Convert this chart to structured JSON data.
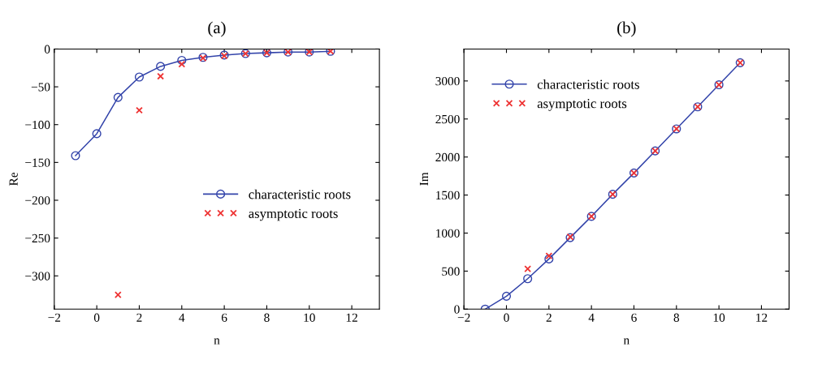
{
  "chart_data": [
    {
      "type": "line",
      "title": "(a)",
      "xlabel": "n",
      "ylabel": "Re",
      "xlim": [
        -2,
        13.3
      ],
      "ylim": [
        -344,
        0
      ],
      "xticks": [
        {
          "value": -2,
          "label": "−2"
        },
        0,
        2,
        4,
        6,
        8,
        10,
        12
      ],
      "yticks": [
        {
          "value": -300,
          "label": "−300"
        },
        {
          "value": -250,
          "label": "−250"
        },
        {
          "value": -200,
          "label": "−200"
        },
        {
          "value": -150,
          "label": "−150"
        },
        {
          "value": -100,
          "label": "−100"
        },
        {
          "value": -50,
          "label": "−50"
        },
        0
      ],
      "grid": false,
      "legend": "right",
      "series": [
        {
          "name": "characteristic roots",
          "type": "line",
          "marker": "circle",
          "line_style": "solid",
          "color": "#3344aa",
          "x": [
            -1,
            0,
            1,
            2,
            3,
            4,
            5,
            6,
            7,
            8,
            9,
            10,
            11
          ],
          "values": [
            -141,
            -112,
            -64,
            -37,
            -23,
            -15,
            -11,
            -8,
            -6,
            -5,
            -4,
            -4,
            -3
          ]
        },
        {
          "name": "asymptotic roots",
          "type": "scatter",
          "marker": "cross",
          "color": "#ee3333",
          "x": [
            1,
            2,
            3,
            4,
            5,
            6,
            7,
            8,
            9,
            10,
            11
          ],
          "values": [
            -325,
            -81,
            -36,
            -20,
            -12,
            -9,
            -6,
            -5,
            -4,
            -4,
            -3
          ]
        }
      ]
    },
    {
      "type": "line",
      "title": "(b)",
      "xlabel": "n",
      "ylabel": "Im",
      "xlim": [
        -2,
        13.3
      ],
      "ylim": [
        0,
        3420
      ],
      "xticks": [
        {
          "value": -2,
          "label": "−2"
        },
        0,
        2,
        4,
        6,
        8,
        10,
        12
      ],
      "yticks": [
        0,
        500,
        1000,
        1500,
        2000,
        2500,
        3000
      ],
      "grid": false,
      "legend": "top left",
      "series": [
        {
          "name": "characteristic roots",
          "type": "line",
          "marker": "circle",
          "line_style": "solid",
          "color": "#3344aa",
          "x": [
            -1,
            0,
            1,
            2,
            3,
            4,
            5,
            6,
            7,
            8,
            9,
            10,
            11
          ],
          "values": [
            0,
            170,
            400,
            660,
            940,
            1220,
            1510,
            1790,
            2080,
            2370,
            2660,
            2950,
            3240
          ]
        },
        {
          "name": "asymptotic roots",
          "type": "scatter",
          "marker": "cross",
          "color": "#ee3333",
          "x": [
            1,
            2,
            3,
            4,
            5,
            6,
            7,
            8,
            9,
            10,
            11
          ],
          "values": [
            530,
            700,
            950,
            1220,
            1510,
            1790,
            2080,
            2370,
            2660,
            2950,
            3240
          ]
        }
      ]
    }
  ]
}
